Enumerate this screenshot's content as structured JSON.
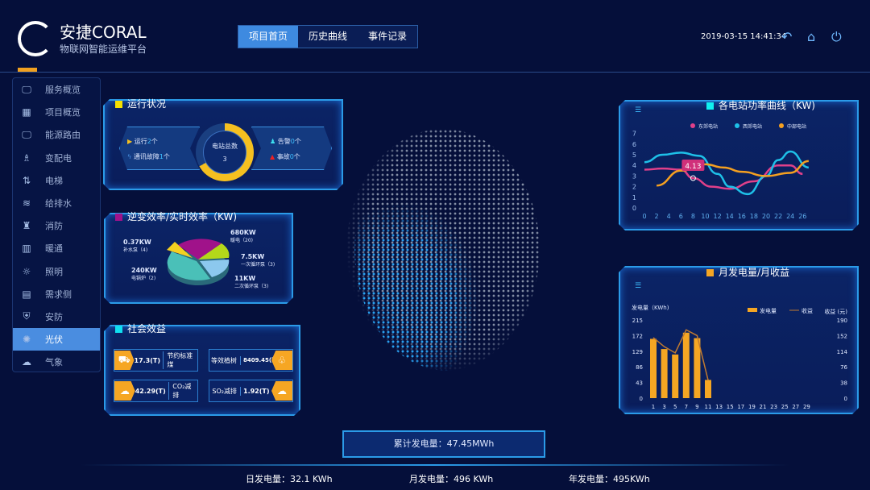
{
  "header": {
    "brand": "安捷CORAL",
    "subtitle": "物联网智能运维平台",
    "datetime": "2019-03-15 14:41:34",
    "tabs": [
      {
        "label": "项目首页",
        "active": true
      },
      {
        "label": "历史曲线"
      },
      {
        "label": "事件记录"
      }
    ]
  },
  "sidebar": {
    "items": [
      {
        "label": "服务概览",
        "icon": "monitor-icon"
      },
      {
        "label": "项目概览",
        "icon": "grid-icon"
      },
      {
        "label": "能源路由",
        "icon": "monitor-icon"
      },
      {
        "label": "变配电",
        "icon": "tower-icon"
      },
      {
        "label": "电梯",
        "icon": "elevator-icon"
      },
      {
        "label": "给排水",
        "icon": "water-icon"
      },
      {
        "label": "消防",
        "icon": "hydrant-icon"
      },
      {
        "label": "暖通",
        "icon": "radiator-icon"
      },
      {
        "label": "照明",
        "icon": "bulb-icon"
      },
      {
        "label": "需求侧",
        "icon": "panel-icon"
      },
      {
        "label": "安防",
        "icon": "shield-icon"
      },
      {
        "label": "光伏",
        "icon": "solar-icon",
        "active": true
      },
      {
        "label": "气象",
        "icon": "weather-icon"
      }
    ]
  },
  "status": {
    "title": "运行状况",
    "running_label": "运行",
    "running": "2",
    "comm_fault_label": "通讯故障",
    "comm_fault": "1",
    "unit": "个",
    "center_label": "电站总数",
    "center_value": "3",
    "alarm_label": "告警",
    "alarm": "0",
    "accident_label": "事故",
    "accident": "0",
    "ring_fill": 0.67
  },
  "inverter": {
    "title": "逆变效率/实时效率（KW)",
    "slices": [
      {
        "value": "680KW",
        "name": "暖电（20)",
        "color": "#a0128a"
      },
      {
        "value": "7.5KW",
        "name": "一次循环泵（3)",
        "color": "#b4d81a"
      },
      {
        "value": "11KW",
        "name": "二次循环泵（3)",
        "color": "#8cc8ee"
      },
      {
        "value": "240KW",
        "name": "电锅炉（2)",
        "color": "#4ac0b8"
      },
      {
        "value": "0.37KW",
        "name": "补水泵（4)",
        "color": "#f5d020"
      }
    ]
  },
  "social": {
    "title": "社会效益",
    "items": [
      {
        "value": "17.3(T)",
        "label": "节约标准煤"
      },
      {
        "label": "等效植树",
        "value": "8409.45(颗)"
      },
      {
        "value": "42.29(T)",
        "label": "CO₂减排"
      },
      {
        "label": "SO₂减排",
        "value": "1.92(T)"
      }
    ]
  },
  "power_curve": {
    "title": "各电站功率曲线（KW)",
    "tooltip": "4.13"
  },
  "monthly": {
    "title": "月发电量/月收益"
  },
  "footer": {
    "total": "累计发电量：47.45MWh",
    "daily": "日发电量：32.1 KWh",
    "monthly": "月发电量：496 KWh",
    "yearly": "年发电量：495KWh"
  },
  "chart_data": [
    {
      "type": "line",
      "title": "各电站功率曲线（KW)",
      "ylim": [
        0,
        7
      ],
      "yticks": [
        "0",
        "1",
        "2",
        "3",
        "4",
        "5",
        "6",
        "7"
      ],
      "xticks": [
        "0",
        "2",
        "4",
        "6",
        "8",
        "10",
        "12",
        "14",
        "16",
        "18",
        "20",
        "22",
        "24",
        "26"
      ],
      "series": [
        {
          "name": "东郊电站",
          "color": "#e0408a",
          "x": [
            0,
            3,
            6,
            8,
            11,
            14,
            18,
            22,
            24,
            26
          ],
          "values": [
            3.6,
            3.7,
            3.6,
            2.8,
            2.0,
            1.8,
            2.5,
            4.0,
            4.0,
            3.2
          ]
        },
        {
          "name": "西郊电站",
          "color": "#1ec0e8",
          "x": [
            0,
            3,
            6,
            9,
            12,
            14,
            17,
            20,
            22,
            24,
            27
          ],
          "values": [
            4.3,
            5.0,
            5.2,
            4.9,
            3.2,
            2.0,
            1.3,
            3.0,
            4.5,
            5.3,
            3.8
          ]
        },
        {
          "name": "中部电站",
          "color": "#f5a020",
          "x": [
            2,
            6,
            10,
            13,
            16,
            20,
            24,
            27
          ],
          "values": [
            2.1,
            3.5,
            4.1,
            3.8,
            3.4,
            3.0,
            3.3,
            4.4
          ]
        }
      ]
    },
    {
      "type": "bar",
      "title": "月发电量/月收益",
      "ylabel": "发电量（KWh)",
      "y2label": "收益 (元)",
      "yticks": [
        "0",
        "43",
        "86",
        "129",
        "172",
        "215"
      ],
      "y2ticks": [
        "0",
        "38",
        "76",
        "114",
        "152",
        "190"
      ],
      "ylim": [
        0,
        215
      ],
      "y2lim": [
        0,
        190
      ],
      "categories": [
        "1",
        "3",
        "5",
        "7",
        "9",
        "11",
        "13",
        "15",
        "17",
        "19",
        "21",
        "23",
        "25",
        "27",
        "29"
      ],
      "series": [
        {
          "name": "发电量",
          "type": "bar",
          "color": "#f5a623",
          "values": [
            163,
            135,
            120,
            180,
            165,
            50,
            null,
            null,
            null,
            null,
            null,
            null,
            null,
            null,
            null
          ]
        },
        {
          "name": "收益",
          "type": "line",
          "color": "#c07a30",
          "values": [
            147,
            125,
            110,
            166,
            152,
            44,
            null,
            null,
            null,
            null,
            null,
            null,
            null,
            null,
            null
          ]
        }
      ]
    }
  ]
}
